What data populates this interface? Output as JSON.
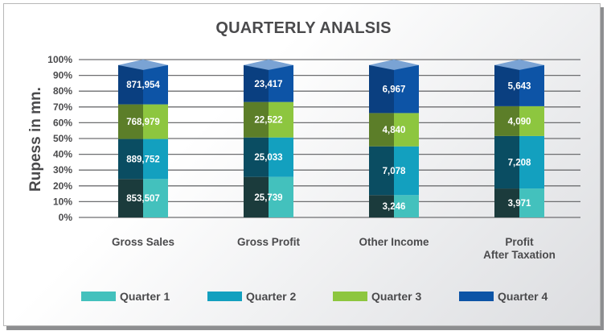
{
  "chart_data": {
    "type": "bar",
    "stacked": true,
    "normalized": true,
    "title": "QUARTERLY ANALSIS",
    "xlabel": "",
    "ylabel": "Rupess in mn.",
    "ylim": [
      0,
      100
    ],
    "y_ticks": [
      "0%",
      "10%",
      "20%",
      "30%",
      "40%",
      "50%",
      "60%",
      "70%",
      "80%",
      "90%",
      "100%"
    ],
    "grid": true,
    "legend_position": "bottom",
    "categories": [
      {
        "lines": [
          "Gross Sales"
        ]
      },
      {
        "lines": [
          "Gross Profit"
        ]
      },
      {
        "lines": [
          "Other Income"
        ]
      },
      {
        "lines": [
          "Profit",
          "After Taxation"
        ]
      }
    ],
    "series": [
      {
        "name": "Quarter 1",
        "color": "#43c1bd",
        "dark": "#1b3b3c",
        "values": [
          853507,
          25739,
          3246,
          3971
        ],
        "labels": [
          "853,507",
          "25,739",
          "3,246",
          "3,971"
        ]
      },
      {
        "name": "Quarter 2",
        "color": "#13a0bf",
        "dark": "#0a4d62",
        "values": [
          889752,
          25033,
          7078,
          7208
        ],
        "labels": [
          "889,752",
          "25,033",
          "7,078",
          "7,208"
        ]
      },
      {
        "name": "Quarter 3",
        "color": "#8dc63f",
        "dark": "#5c7e29",
        "values": [
          768979,
          22522,
          4840,
          4090
        ],
        "labels": [
          "768,979",
          "22,522",
          "4,840",
          "4,090"
        ]
      },
      {
        "name": "Quarter 4",
        "color": "#0d54a6",
        "dark": "#0a3f80",
        "values": [
          871954,
          23417,
          6967,
          5643
        ],
        "labels": [
          "871,954",
          "23,417",
          "6,967",
          "5,643"
        ]
      }
    ]
  }
}
